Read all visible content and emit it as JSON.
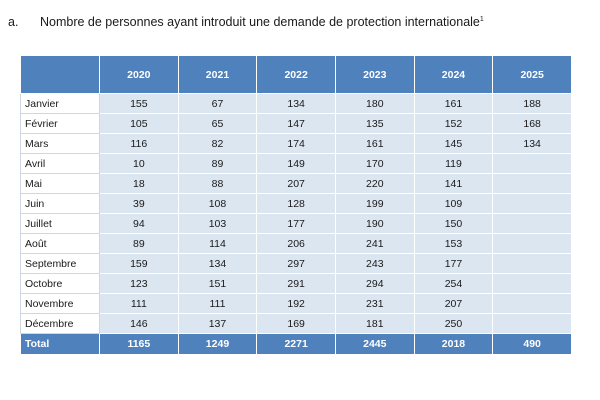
{
  "heading": {
    "prefix": "a.",
    "text": "Nombre de personnes ayant introduit une demande de protection internationale",
    "footnote": "1"
  },
  "table": {
    "years": [
      "2020",
      "2021",
      "2022",
      "2023",
      "2024",
      "2025"
    ],
    "rows": [
      {
        "month": "Janvier",
        "values": [
          "155",
          "67",
          "134",
          "180",
          "161",
          "188"
        ]
      },
      {
        "month": "Février",
        "values": [
          "105",
          "65",
          "147",
          "135",
          "152",
          "168"
        ]
      },
      {
        "month": "Mars",
        "values": [
          "116",
          "82",
          "174",
          "161",
          "145",
          "134"
        ]
      },
      {
        "month": "Avril",
        "values": [
          "10",
          "89",
          "149",
          "170",
          "119",
          ""
        ]
      },
      {
        "month": "Mai",
        "values": [
          "18",
          "88",
          "207",
          "220",
          "141",
          ""
        ]
      },
      {
        "month": "Juin",
        "values": [
          "39",
          "108",
          "128",
          "199",
          "109",
          ""
        ]
      },
      {
        "month": "Juillet",
        "values": [
          "94",
          "103",
          "177",
          "190",
          "150",
          ""
        ]
      },
      {
        "month": "Août",
        "values": [
          "89",
          "114",
          "206",
          "241",
          "153",
          ""
        ]
      },
      {
        "month": "Septembre",
        "values": [
          "159",
          "134",
          "297",
          "243",
          "177",
          ""
        ]
      },
      {
        "month": "Octobre",
        "values": [
          "123",
          "151",
          "291",
          "294",
          "254",
          ""
        ]
      },
      {
        "month": "Novembre",
        "values": [
          "111",
          "111",
          "192",
          "231",
          "207",
          ""
        ]
      },
      {
        "month": "Décembre",
        "values": [
          "146",
          "137",
          "169",
          "181",
          "250",
          ""
        ]
      }
    ],
    "total": {
      "label": "Total",
      "values": [
        "1165",
        "1249",
        "2271",
        "2445",
        "2018",
        "490"
      ]
    }
  }
}
